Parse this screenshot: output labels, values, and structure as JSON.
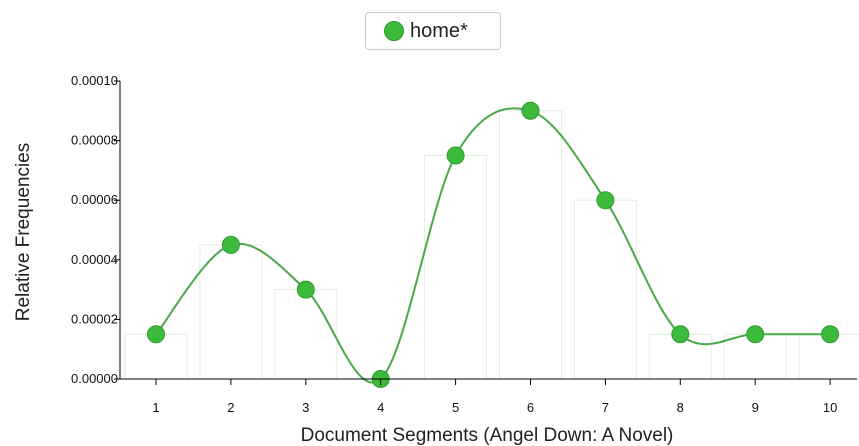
{
  "legend": {
    "label": "home*"
  },
  "chart_data": {
    "type": "bar",
    "title": "",
    "xlabel": "Document Segments (Angel Down: A Novel)",
    "ylabel": "Relative Frequencies",
    "categories": [
      "1",
      "2",
      "3",
      "4",
      "5",
      "6",
      "7",
      "8",
      "9",
      "10"
    ],
    "series": [
      {
        "name": "home*",
        "values": [
          1.5e-05,
          4.5e-05,
          3e-05,
          0.0,
          7.5e-05,
          9e-05,
          6e-05,
          1.5e-05,
          1.5e-05,
          1.5e-05
        ]
      }
    ],
    "ylim": [
      0,
      0.0001
    ],
    "yticks": [
      "0.00000",
      "0.00002",
      "0.00004",
      "0.00006",
      "0.00008",
      "0.00010"
    ],
    "grid": false,
    "legend_position": "top-center",
    "colors": {
      "series": "#3cba3c",
      "line": "#4aa84a",
      "bar_stroke": "#dff0df"
    }
  }
}
